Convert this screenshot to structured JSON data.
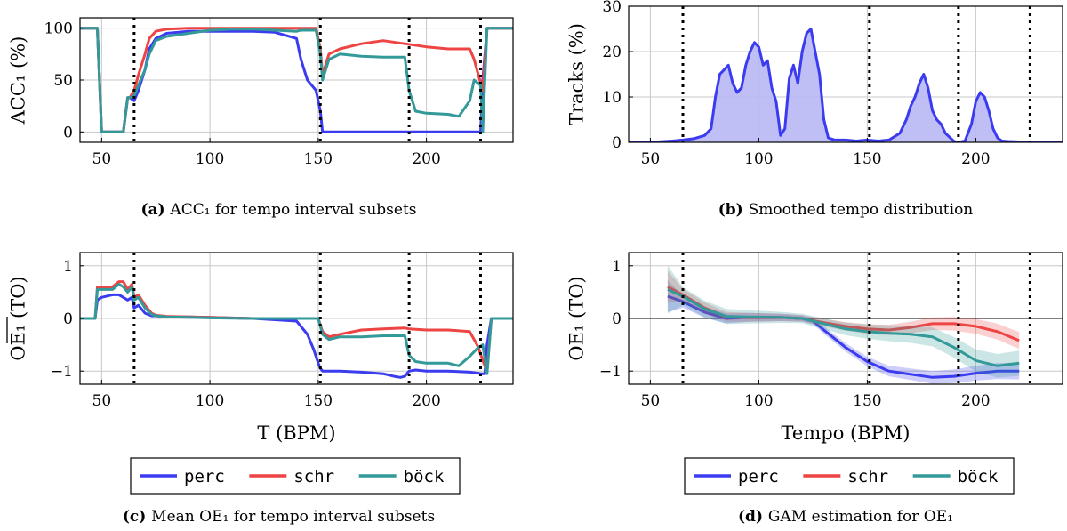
{
  "colors": {
    "perc": "#3b3bf0",
    "schr": "#ee4444",
    "bock": "#339999",
    "overlap": "#2f5e66",
    "fill": "#b8b8f5"
  },
  "legend_groups": [
    {
      "items": [
        {
          "key": "perc",
          "label": "perc"
        },
        {
          "key": "schr",
          "label": "schr"
        },
        {
          "key": "bock",
          "label": "böck"
        }
      ]
    },
    {
      "items": [
        {
          "key": "perc",
          "label": "perc"
        },
        {
          "key": "schr",
          "label": "schr"
        },
        {
          "key": "bock",
          "label": "böck"
        }
      ]
    }
  ],
  "chart_data": [
    {
      "id": "a",
      "type": "line",
      "caption_tag": "(a)",
      "caption": "ACC₁ for tempo interval subsets",
      "ylabel": "ACC₁ (%)",
      "xlabel": "",
      "xlim": [
        40,
        240
      ],
      "ylim": [
        -10,
        110
      ],
      "xticks": [
        50,
        100,
        150,
        200
      ],
      "yticks": [
        0,
        50,
        100
      ],
      "vlines": [
        65,
        151,
        192,
        225
      ],
      "series": [
        {
          "key": "perc",
          "name": "perc",
          "x": [
            40,
            48,
            50,
            55,
            60,
            62,
            63,
            65,
            67,
            70,
            72,
            75,
            80,
            90,
            100,
            110,
            120,
            130,
            140,
            142,
            145,
            147,
            149,
            151,
            152,
            155,
            160,
            170,
            180,
            190,
            200,
            210,
            220,
            225,
            226,
            228,
            230,
            240
          ],
          "y": [
            100,
            100,
            0,
            0,
            0,
            33,
            33,
            30,
            40,
            60,
            80,
            90,
            95,
            97,
            97,
            97,
            97,
            96,
            90,
            70,
            50,
            45,
            40,
            20,
            0,
            0,
            0,
            0,
            0,
            0,
            0,
            0,
            0,
            0,
            50,
            100,
            100,
            100
          ]
        },
        {
          "key": "schr",
          "name": "schr",
          "x": [
            40,
            48,
            50,
            55,
            60,
            62,
            63,
            65,
            67,
            70,
            72,
            75,
            80,
            90,
            100,
            110,
            120,
            130,
            140,
            142,
            145,
            147,
            149,
            151,
            152,
            155,
            160,
            170,
            180,
            190,
            200,
            210,
            220,
            222,
            224,
            226,
            228,
            230,
            240
          ],
          "y": [
            100,
            100,
            0,
            0,
            0,
            33,
            33,
            40,
            55,
            75,
            90,
            97,
            99,
            100,
            100,
            100,
            100,
            100,
            100,
            100,
            100,
            100,
            100,
            80,
            55,
            75,
            80,
            85,
            88,
            85,
            82,
            80,
            80,
            70,
            55,
            40,
            100,
            100,
            100
          ]
        },
        {
          "key": "bock",
          "name": "böck",
          "x": [
            40,
            48,
            50,
            55,
            60,
            62,
            63,
            65,
            67,
            70,
            72,
            75,
            80,
            90,
            100,
            110,
            120,
            130,
            140,
            142,
            145,
            147,
            149,
            151,
            152,
            155,
            160,
            170,
            180,
            190,
            192,
            195,
            200,
            210,
            215,
            220,
            222,
            225,
            226,
            228,
            230,
            240
          ],
          "y": [
            100,
            100,
            0,
            0,
            0,
            33,
            33,
            35,
            45,
            60,
            75,
            88,
            92,
            95,
            98,
            99,
            99,
            98,
            97,
            98,
            98,
            98,
            98,
            75,
            50,
            70,
            75,
            73,
            72,
            72,
            40,
            20,
            18,
            17,
            15,
            30,
            50,
            45,
            0,
            100,
            100,
            100
          ]
        }
      ]
    },
    {
      "id": "b",
      "type": "area",
      "caption_tag": "(b)",
      "caption": "Smoothed tempo distribution",
      "ylabel": "Tracks (%)",
      "xlabel": "",
      "xlim": [
        40,
        240
      ],
      "ylim": [
        0,
        30
      ],
      "xticks": [
        50,
        100,
        150,
        200
      ],
      "yticks": [
        0,
        10,
        20,
        30
      ],
      "vlines": [
        65,
        151,
        192,
        225
      ],
      "series": [
        {
          "key": "perc",
          "name": "distribution",
          "x": [
            40,
            50,
            60,
            65,
            70,
            75,
            78,
            80,
            82,
            84,
            86,
            88,
            90,
            92,
            94,
            96,
            98,
            100,
            102,
            104,
            106,
            108,
            110,
            112,
            114,
            116,
            118,
            120,
            122,
            124,
            126,
            128,
            130,
            132,
            135,
            140,
            145,
            150,
            155,
            160,
            165,
            168,
            170,
            172,
            174,
            176,
            178,
            180,
            182,
            184,
            186,
            190,
            192,
            195,
            198,
            200,
            202,
            204,
            206,
            208,
            210,
            212,
            215,
            220,
            225,
            240
          ],
          "y": [
            0,
            0,
            0.3,
            0.5,
            0.8,
            1.5,
            3,
            10,
            15,
            16,
            17,
            13,
            11,
            12,
            17,
            20,
            22,
            21,
            17,
            18,
            12,
            9,
            1.5,
            3,
            14,
            17,
            13,
            20,
            24,
            25,
            20,
            15,
            5,
            1,
            0.5,
            0.5,
            0.3,
            0.5,
            0.3,
            0.5,
            2,
            5,
            8,
            10,
            13,
            15,
            12,
            7,
            5,
            4,
            2,
            0.2,
            0,
            0.3,
            4,
            9,
            11,
            10,
            7,
            3,
            1,
            0.3,
            0.2,
            0.1,
            0,
            0
          ]
        }
      ]
    },
    {
      "id": "c",
      "type": "line",
      "caption_tag": "(c)",
      "caption": "Mean OE₁ for tempo interval subsets",
      "ylabel": "OE₁ (TO)",
      "xlabel": "T (BPM)",
      "xlim": [
        40,
        240
      ],
      "ylim": [
        -1.25,
        1.25
      ],
      "xticks": [
        50,
        100,
        150,
        200
      ],
      "yticks": [
        -1,
        0,
        1
      ],
      "vlines": [
        65,
        151,
        192,
        225
      ],
      "series": [
        {
          "key": "perc",
          "name": "perc",
          "x": [
            40,
            47,
            48,
            50,
            55,
            58,
            60,
            62,
            64,
            65,
            67,
            70,
            73,
            75,
            80,
            90,
            100,
            120,
            140,
            145,
            148,
            150,
            151,
            152,
            155,
            160,
            170,
            180,
            185,
            188,
            190,
            192,
            195,
            200,
            210,
            220,
            224,
            225,
            227,
            228,
            230,
            240
          ],
          "y": [
            0,
            0,
            0.35,
            0.4,
            0.45,
            0.45,
            0.4,
            0.35,
            0.4,
            0.2,
            0.25,
            0.1,
            0.05,
            0.05,
            0.03,
            0.03,
            0.02,
            0,
            -0.05,
            -0.3,
            -0.6,
            -0.85,
            -0.95,
            -1,
            -1.0,
            -1.0,
            -1.02,
            -1.05,
            -1.1,
            -1.12,
            -1.1,
            -1.0,
            -0.98,
            -1.0,
            -1.0,
            -1.02,
            -1.04,
            -1.05,
            -1.05,
            -0.5,
            0,
            0
          ]
        },
        {
          "key": "schr",
          "name": "schr",
          "x": [
            40,
            47,
            48,
            50,
            55,
            58,
            60,
            62,
            64,
            65,
            67,
            70,
            73,
            75,
            80,
            90,
            100,
            110,
            120,
            140,
            150,
            152,
            155,
            160,
            170,
            180,
            190,
            192,
            200,
            210,
            220,
            222,
            224,
            226,
            228,
            230,
            240
          ],
          "y": [
            0,
            0,
            0.6,
            0.6,
            0.6,
            0.7,
            0.7,
            0.55,
            0.65,
            0.4,
            0.45,
            0.25,
            0.1,
            0.06,
            0.04,
            0.03,
            0.02,
            0.01,
            0,
            0,
            0,
            -0.25,
            -0.35,
            -0.3,
            -0.22,
            -0.2,
            -0.18,
            -0.2,
            -0.22,
            -0.22,
            -0.25,
            -0.4,
            -0.55,
            -0.8,
            -1.0,
            0,
            0
          ]
        },
        {
          "key": "bock",
          "name": "böck",
          "x": [
            40,
            47,
            48,
            50,
            55,
            58,
            60,
            62,
            64,
            65,
            67,
            70,
            73,
            75,
            80,
            90,
            100,
            120,
            140,
            150,
            152,
            155,
            160,
            170,
            180,
            190,
            192,
            195,
            200,
            210,
            215,
            220,
            224,
            226,
            228,
            230,
            240
          ],
          "y": [
            0,
            0,
            0.55,
            0.55,
            0.55,
            0.65,
            0.6,
            0.5,
            0.6,
            0.35,
            0.4,
            0.2,
            0.08,
            0.05,
            0.03,
            0.02,
            0.01,
            0,
            0,
            0,
            -0.3,
            -0.4,
            -0.35,
            -0.35,
            -0.33,
            -0.33,
            -0.7,
            -0.82,
            -0.85,
            -0.85,
            -0.9,
            -0.72,
            -0.55,
            -0.5,
            -1.05,
            0,
            0
          ]
        }
      ]
    },
    {
      "id": "d",
      "type": "line",
      "caption_tag": "(d)",
      "caption": "GAM estimation for OE₁",
      "ylabel": "OE₁ (TO)",
      "xlabel": "Tempo (BPM)",
      "xlim": [
        40,
        240
      ],
      "ylim": [
        -1.25,
        1.25
      ],
      "xticks": [
        50,
        100,
        150,
        200
      ],
      "yticks": [
        -1,
        0,
        1
      ],
      "vlines": [
        65,
        151,
        192,
        225
      ],
      "series": [
        {
          "key": "perc",
          "name": "perc",
          "x": [
            58,
            65,
            75,
            85,
            95,
            110,
            120,
            125,
            130,
            140,
            150,
            160,
            170,
            180,
            190,
            200,
            210,
            220
          ],
          "y": [
            0.42,
            0.32,
            0.12,
            0.0,
            0.02,
            0.02,
            0.0,
            -0.05,
            -0.22,
            -0.55,
            -0.82,
            -1.0,
            -1.06,
            -1.12,
            -1.1,
            -1.04,
            -1.0,
            -1.0
          ],
          "band": 0.06
        },
        {
          "key": "schr",
          "name": "schr",
          "x": [
            58,
            65,
            75,
            85,
            95,
            110,
            120,
            130,
            140,
            150,
            160,
            170,
            180,
            190,
            200,
            210,
            220
          ],
          "y": [
            0.6,
            0.45,
            0.2,
            0.03,
            0.02,
            0.02,
            0.0,
            -0.08,
            -0.15,
            -0.2,
            -0.22,
            -0.17,
            -0.1,
            -0.1,
            -0.15,
            -0.25,
            -0.42
          ],
          "band": 0.06
        },
        {
          "key": "bock",
          "name": "böck",
          "x": [
            58,
            65,
            75,
            85,
            95,
            110,
            120,
            130,
            140,
            150,
            160,
            170,
            180,
            190,
            200,
            210,
            220
          ],
          "y": [
            0.55,
            0.42,
            0.18,
            0.04,
            0.03,
            0.02,
            0.0,
            -0.1,
            -0.2,
            -0.25,
            -0.28,
            -0.3,
            -0.35,
            -0.55,
            -0.8,
            -0.9,
            -0.85
          ],
          "band": 0.09
        }
      ]
    }
  ]
}
